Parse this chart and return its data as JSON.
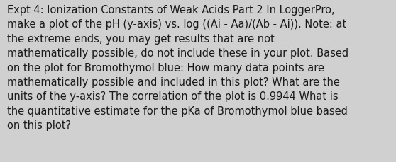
{
  "lines": [
    "Expt 4: Ionization Constants of Weak Acids Part 2 In LoggerPro,",
    "make a plot of the pH (y-axis) vs. log ((Ai - Aa)/(Ab - Ai)). Note: at",
    "the extreme ends, you may get results that are not",
    "mathematically possible, do not include these in your plot. Based",
    "on the plot for Bromothymol blue: How many data points are",
    "mathematically possible and included in this plot? What are the",
    "units of the y-axis? The correlation of the plot is 0.9944 What is",
    "the quantitative estimate for the pKa of Bromothymol blue based",
    "on this plot?"
  ],
  "background_color": "#d0d0d0",
  "text_color": "#1a1a1a",
  "font_size": 10.5,
  "fig_width": 5.58,
  "fig_height": 2.3
}
